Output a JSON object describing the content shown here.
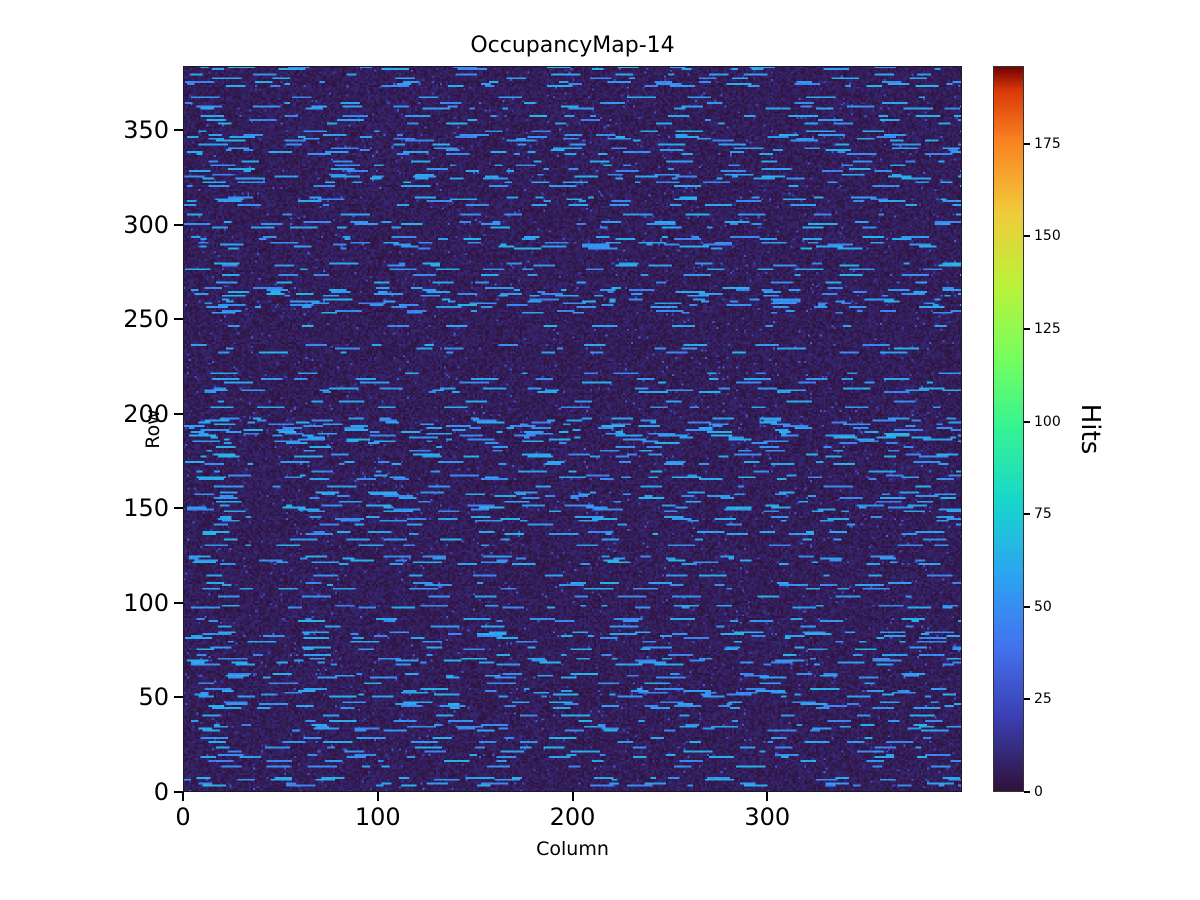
{
  "title": "OccupancyMap-14",
  "x_axis": {
    "label": "Column",
    "ticks": [
      0,
      100,
      200,
      300
    ],
    "range": [
      0,
      400
    ]
  },
  "y_axis": {
    "label": "Row",
    "ticks": [
      0,
      50,
      100,
      150,
      200,
      250,
      300,
      350
    ],
    "range": [
      0,
      384
    ]
  },
  "colorbar": {
    "label": "Hits",
    "ticks": [
      0,
      25,
      50,
      75,
      100,
      125,
      150,
      175
    ],
    "vmin": 0,
    "vmax": 196
  },
  "chart_data": {
    "type": "heatmap",
    "title": "OccupancyMap-14",
    "xlabel": "Column",
    "ylabel": "Row",
    "value_label": "Hits",
    "n_cols": 400,
    "n_rows": 384,
    "vmin": 0,
    "vmax": 196,
    "colormap": "turbo",
    "colormap_stops": [
      [
        0.0,
        "#30123b"
      ],
      [
        0.1,
        "#3b3fb2"
      ],
      [
        0.2,
        "#4473f0"
      ],
      [
        0.3,
        "#2ca6f1"
      ],
      [
        0.4,
        "#18d6cc"
      ],
      [
        0.5,
        "#35f394"
      ],
      [
        0.6,
        "#78fe5d"
      ],
      [
        0.7,
        "#bcf23a"
      ],
      [
        0.8,
        "#f1cb3a"
      ],
      [
        0.9,
        "#fb8222"
      ],
      [
        0.97,
        "#d93807"
      ],
      [
        1.0,
        "#7a0403"
      ]
    ],
    "background_value_range": [
      0,
      10
    ],
    "speckle_value_range": [
      15,
      35
    ],
    "speckle_probability": 0.015,
    "hit_streak_value_range": [
      45,
      65
    ],
    "row_active_probability": 0.45,
    "dash_length_range": [
      3,
      16
    ],
    "dash_gap_range": [
      6,
      56
    ],
    "seed": 14
  }
}
